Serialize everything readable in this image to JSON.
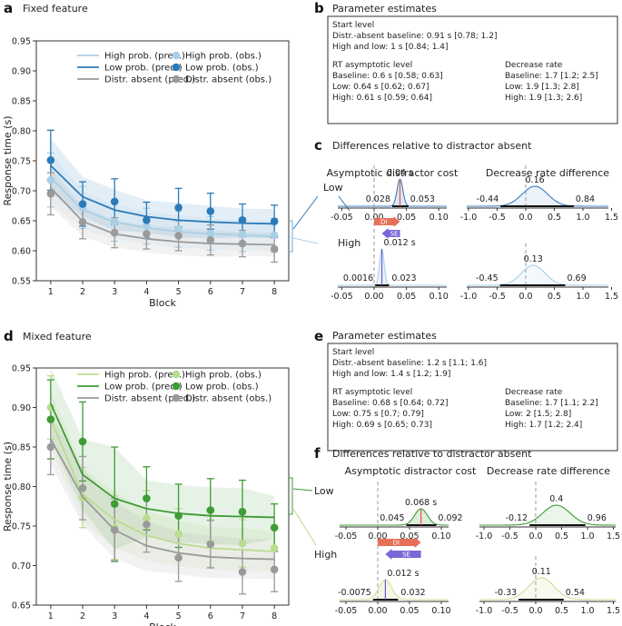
{
  "chart_data": [
    {
      "panel": "a",
      "type": "line",
      "title": "Fixed feature",
      "xlabel": "Block",
      "ylabel": "Response time (s)",
      "x": [
        1,
        2,
        3,
        4,
        5,
        6,
        7,
        8
      ],
      "ylim": [
        0.55,
        0.95
      ],
      "yticks": [
        "0.55",
        "0.60",
        "0.65",
        "0.70",
        "0.75",
        "0.80",
        "0.85",
        "0.90",
        "0.95"
      ],
      "legend": [
        "High prob. (pred.)",
        "Low prob. (pred.)",
        "Distr. absent (pred.)",
        "High prob. (obs.)",
        "Low prob. (obs.)",
        "Distr. absent (obs.)"
      ],
      "bracket_labels": {
        "low": "Low",
        "high": "High"
      },
      "series": [
        {
          "name": "High prob.",
          "color": "#a9cfe7",
          "pred": [
            0.722,
            0.668,
            0.648,
            0.638,
            0.632,
            0.628,
            0.626,
            0.624
          ],
          "obs": [
            0.718,
            0.672,
            0.648,
            0.641,
            0.636,
            0.629,
            0.627,
            0.626
          ],
          "err": [
            0.045,
            0.035,
            0.032,
            0.03,
            0.03,
            0.028,
            0.028,
            0.028
          ]
        },
        {
          "name": "Low prob.",
          "color": "#2b7bb9",
          "pred": [
            0.742,
            0.69,
            0.668,
            0.657,
            0.651,
            0.648,
            0.646,
            0.645
          ],
          "obs": [
            0.751,
            0.678,
            0.682,
            0.651,
            0.672,
            0.666,
            0.651,
            0.649
          ],
          "err": [
            0.05,
            0.037,
            0.038,
            0.03,
            0.032,
            0.03,
            0.027,
            0.027
          ]
        },
        {
          "name": "Distr. absent",
          "color": "#9a9a9a",
          "pred": [
            0.705,
            0.649,
            0.628,
            0.62,
            0.615,
            0.612,
            0.611,
            0.61
          ],
          "obs": [
            0.695,
            0.648,
            0.63,
            0.628,
            0.625,
            0.618,
            0.612,
            0.603
          ],
          "err": [
            0.035,
            0.028,
            0.025,
            0.025,
            0.025,
            0.025,
            0.022,
            0.022
          ]
        }
      ]
    },
    {
      "panel": "d",
      "type": "line",
      "title": "Mixed feature",
      "xlabel": "Block",
      "ylabel": "Response time (s)",
      "x": [
        1,
        2,
        3,
        4,
        5,
        6,
        7,
        8
      ],
      "ylim": [
        0.65,
        0.95
      ],
      "yticks": [
        "0.65",
        "0.70",
        "0.75",
        "0.80",
        "0.85",
        "0.90",
        "0.95"
      ],
      "legend": [
        "High prob. (pred.)",
        "Low prob. (pred.)",
        "Distr. absent (pred.)",
        "High prob. (obs.)",
        "Low prob. (obs.)",
        "Distr. absent (obs.)"
      ],
      "bracket_labels": {
        "low": "Low",
        "high": "High"
      },
      "series": [
        {
          "name": "High prob.",
          "color": "#b9dc8e",
          "pred": [
            0.885,
            0.79,
            0.758,
            0.738,
            0.728,
            0.722,
            0.72,
            0.718
          ],
          "obs": [
            0.9,
            0.786,
            0.748,
            0.76,
            0.74,
            0.728,
            0.728,
            0.722
          ],
          "err": [
            0.04,
            0.038,
            0.04,
            0.035,
            0.032,
            0.03,
            0.03,
            0.028
          ]
        },
        {
          "name": "Low prob.",
          "color": "#3f9b35",
          "pred": [
            0.905,
            0.815,
            0.785,
            0.772,
            0.766,
            0.763,
            0.762,
            0.761
          ],
          "obs": [
            0.885,
            0.857,
            0.778,
            0.785,
            0.763,
            0.77,
            0.768,
            0.748
          ],
          "err": [
            0.05,
            0.05,
            0.072,
            0.04,
            0.04,
            0.04,
            0.04,
            0.03
          ]
        },
        {
          "name": "Distr. absent",
          "color": "#9a9a9a",
          "pred": [
            0.86,
            0.787,
            0.745,
            0.725,
            0.716,
            0.711,
            0.709,
            0.708
          ],
          "obs": [
            0.85,
            0.798,
            0.745,
            0.752,
            0.71,
            0.727,
            0.692,
            0.695
          ],
          "err": [
            0.035,
            0.04,
            0.04,
            0.035,
            0.03,
            0.03,
            0.028,
            0.028
          ]
        }
      ]
    }
  ],
  "panel_a": {
    "label": "a",
    "title": "Fixed feature"
  },
  "panel_b": {
    "label": "b",
    "title": "Parameter estimates",
    "lines": {
      "start_heading": "Start level",
      "start_baseline": "Distr.-absent baseline: 0.91 s [0.78; 1.2]",
      "start_highlow": "High and low: 1 s [0.84; 1.4]",
      "rt_heading": "RT asymptotic level",
      "rt_baseline": "Baseline: 0.6 s [0.58; 0.63]",
      "rt_low": "Low: 0.64 s [0.62; 0.67]",
      "rt_high": "High: 0.61 s [0.59; 0.64]",
      "dr_heading": "Decrease rate",
      "dr_baseline": "Baseline: 1.7 [1.2; 2.5]",
      "dr_low": "Low: 1.9 [1.3; 2.8]",
      "dr_high": "High: 1.9 [1.3; 2.6]"
    }
  },
  "panel_c": {
    "label": "c",
    "title": "Differences relative to distractor absent",
    "col_left": "Asymptotic distractor cost",
    "col_right": "Decrease rate difference",
    "row_low": "Low",
    "row_high": "High",
    "low_cost": {
      "mode": "0.04 s",
      "ci_lo": "0.028",
      "ci_hi": "0.053"
    },
    "high_cost": {
      "mode": "0.012 s",
      "ci_lo": "0.0016",
      "ci_hi": "0.023"
    },
    "low_rate": {
      "mode": "0.16",
      "ci_lo": "-0.44",
      "ci_hi": "0.84"
    },
    "high_rate": {
      "mode": "0.13",
      "ci_lo": "-0.45",
      "ci_hi": "0.69"
    },
    "arrow_di": "DI",
    "arrow_se": "SE",
    "cost_ticks": [
      "-0.05",
      "0.00",
      "0.05",
      "0.10"
    ],
    "rate_ticks": [
      "-1.0",
      "-0.5",
      "0.0",
      "0.5",
      "1.0",
      "1.5"
    ]
  },
  "panel_d": {
    "label": "d",
    "title": "Mixed feature"
  },
  "panel_e": {
    "label": "e",
    "title": "Parameter estimates",
    "lines": {
      "start_heading": "Start level",
      "start_baseline": "Distr.-absent baseline: 1.2 s [1.1; 1.6]",
      "start_highlow": "High and low: 1.4 s [1.2; 1.9]",
      "rt_heading": "RT asymptotic level",
      "rt_baseline": "Baseline: 0.68 s [0.64; 0.72]",
      "rt_low": "Low: 0.75 s [0.7; 0.79]",
      "rt_high": "High: 0.69 s [0.65; 0.73]",
      "dr_heading": "Decrease rate",
      "dr_baseline": "Baseline: 1.7 [1.1; 2.2]",
      "dr_low": "Low: 2 [1.5; 2.8]",
      "dr_high": "High: 1.7 [1.2; 2.4]"
    }
  },
  "panel_f": {
    "label": "f",
    "title": "Differences relative to distractor absent",
    "col_left": "Asymptotic distractor cost",
    "col_right": "Decrease rate difference",
    "row_low": "Low",
    "row_high": "High",
    "low_cost": {
      "mode": "0.068 s",
      "ci_lo": "0.045",
      "ci_hi": "0.092"
    },
    "high_cost": {
      "mode": "0.012 s",
      "ci_lo": "-0.0075",
      "ci_hi": "0.032"
    },
    "low_rate": {
      "mode": "0.4",
      "ci_lo": "-0.12",
      "ci_hi": "0.96"
    },
    "high_rate": {
      "mode": "0.11",
      "ci_lo": "-0.33",
      "ci_hi": "0.54"
    },
    "arrow_di": "DI",
    "arrow_se": "SE",
    "cost_ticks": [
      "-0.05",
      "0.00",
      "0.05",
      "0.10"
    ],
    "rate_ticks": [
      "-1.0",
      "-0.5",
      "0.0",
      "0.5",
      "1.0",
      "1.5"
    ]
  }
}
